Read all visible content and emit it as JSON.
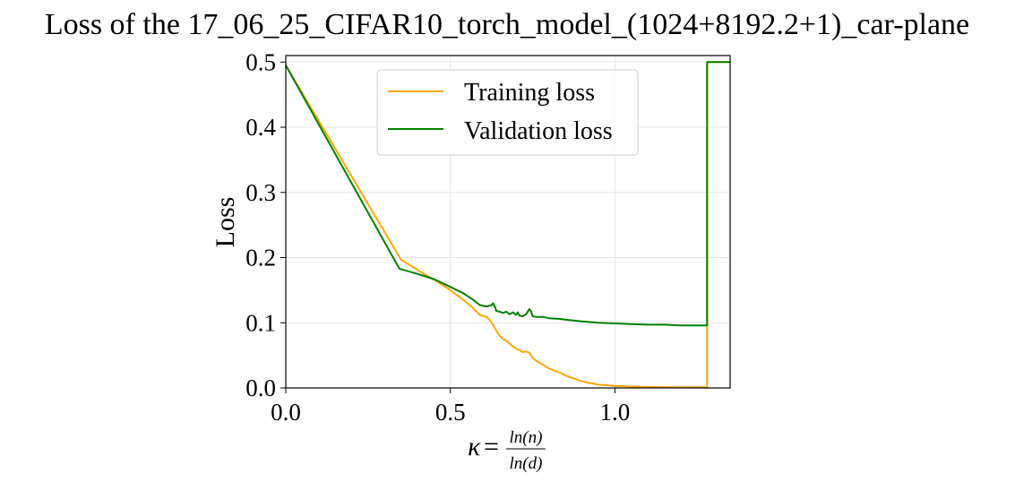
{
  "chart_data": {
    "type": "line",
    "title": "Loss of the 17_06_25_CIFAR10_torch_model_(1024+8192.2+1)_car-plane",
    "xlabel": {
      "symbol": "κ",
      "equals": "=",
      "numerator": "ln(n)",
      "denominator": "ln(d)"
    },
    "ylabel": "Loss",
    "xlim": [
      0.0,
      1.35
    ],
    "ylim": [
      0.0,
      0.51
    ],
    "xticks": [
      {
        "value": 0.0,
        "label": "0.0"
      },
      {
        "value": 0.5,
        "label": "0.5"
      },
      {
        "value": 1.0,
        "label": "1.0"
      }
    ],
    "yticks": [
      {
        "value": 0.0,
        "label": "0.0"
      },
      {
        "value": 0.1,
        "label": "0.1"
      },
      {
        "value": 0.2,
        "label": "0.2"
      },
      {
        "value": 0.3,
        "label": "0.3"
      },
      {
        "value": 0.4,
        "label": "0.4"
      },
      {
        "value": 0.5,
        "label": "0.5"
      }
    ],
    "grid": true,
    "legend_position": "top-center",
    "series": [
      {
        "name": "Training loss",
        "color": "#ffa500",
        "x": [
          0.0,
          0.35,
          0.42,
          0.46,
          0.5,
          0.54,
          0.57,
          0.59,
          0.61,
          0.62,
          0.63,
          0.64,
          0.65,
          0.66,
          0.67,
          0.68,
          0.69,
          0.7,
          0.71,
          0.72,
          0.73,
          0.74,
          0.75,
          0.76,
          0.78,
          0.8,
          0.83,
          0.86,
          0.9,
          0.95,
          1.0,
          1.05,
          1.1,
          1.2,
          1.28,
          1.28,
          1.35
        ],
        "y": [
          0.495,
          0.197,
          0.175,
          0.163,
          0.15,
          0.135,
          0.122,
          0.112,
          0.109,
          0.104,
          0.096,
          0.088,
          0.08,
          0.075,
          0.072,
          0.068,
          0.064,
          0.06,
          0.058,
          0.055,
          0.056,
          0.054,
          0.046,
          0.042,
          0.036,
          0.03,
          0.024,
          0.017,
          0.01,
          0.005,
          0.003,
          0.002,
          0.0015,
          0.001,
          0.001,
          0.5,
          0.5
        ]
      },
      {
        "name": "Validation loss",
        "color": "#008000",
        "x": [
          0.0,
          0.345,
          0.4,
          0.45,
          0.5,
          0.54,
          0.57,
          0.59,
          0.61,
          0.625,
          0.63,
          0.635,
          0.64,
          0.65,
          0.66,
          0.67,
          0.68,
          0.69,
          0.7,
          0.705,
          0.71,
          0.72,
          0.73,
          0.74,
          0.745,
          0.75,
          0.76,
          0.78,
          0.8,
          0.83,
          0.86,
          0.9,
          0.95,
          1.0,
          1.05,
          1.1,
          1.15,
          1.2,
          1.25,
          1.28,
          1.28,
          1.35
        ],
        "y": [
          0.495,
          0.183,
          0.175,
          0.167,
          0.155,
          0.145,
          0.135,
          0.127,
          0.125,
          0.127,
          0.13,
          0.125,
          0.118,
          0.117,
          0.115,
          0.117,
          0.113,
          0.116,
          0.112,
          0.116,
          0.111,
          0.11,
          0.113,
          0.121,
          0.118,
          0.11,
          0.109,
          0.109,
          0.107,
          0.106,
          0.104,
          0.102,
          0.1,
          0.099,
          0.098,
          0.097,
          0.097,
          0.096,
          0.096,
          0.096,
          0.5,
          0.5
        ]
      }
    ]
  }
}
